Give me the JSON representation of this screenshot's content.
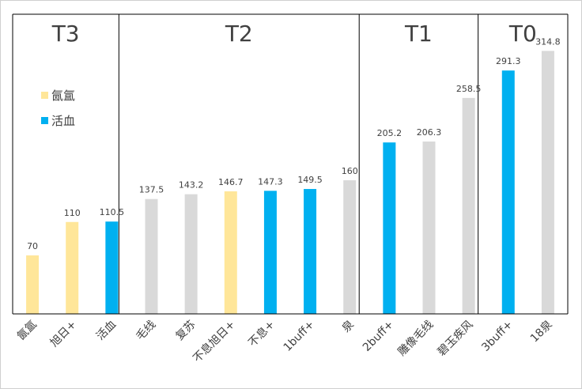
{
  "chart_data": {
    "type": "bar",
    "title": "",
    "xlabel": "",
    "ylabel": "",
    "ylim": [
      0,
      330
    ],
    "grid": false,
    "legend_position": "left",
    "legend": [
      {
        "label": "氤氲",
        "color": "#FFE699"
      },
      {
        "label": "活血",
        "color": "#00B0F0"
      }
    ],
    "default_color": "#D9D9D9",
    "categories": [
      "氤氲",
      "旭日+",
      "活血",
      "毛线",
      "复苏",
      "不息旭日+",
      "不息+",
      "1buff+",
      "泉",
      "2buff+",
      "雕像毛线",
      "碧玉疾风",
      "3buff+",
      "18泉"
    ],
    "values": [
      70,
      110,
      110.5,
      137.5,
      143.2,
      146.7,
      147.3,
      149.5,
      160,
      205.2,
      206.3,
      258.5,
      291.3,
      314.8
    ],
    "value_labels": [
      "70",
      "110",
      "110.5",
      "137.5",
      "143.2",
      "146.7",
      "147.3",
      "149.5",
      "160",
      "205.2",
      "206.3",
      "258.5",
      "291.3",
      "314.8"
    ],
    "bar_groups": [
      "氤氲",
      "氤氲",
      "活血",
      "other",
      "other",
      "氤氲",
      "活血",
      "活血",
      "other",
      "活血",
      "other",
      "other",
      "活血",
      "other"
    ],
    "tiers": [
      {
        "label": "T3",
        "first": 0,
        "last": 2
      },
      {
        "label": "T2",
        "first": 3,
        "last": 8
      },
      {
        "label": "T1",
        "first": 8,
        "last": 11
      },
      {
        "label": "T0",
        "first": 11,
        "last": 13
      }
    ]
  }
}
